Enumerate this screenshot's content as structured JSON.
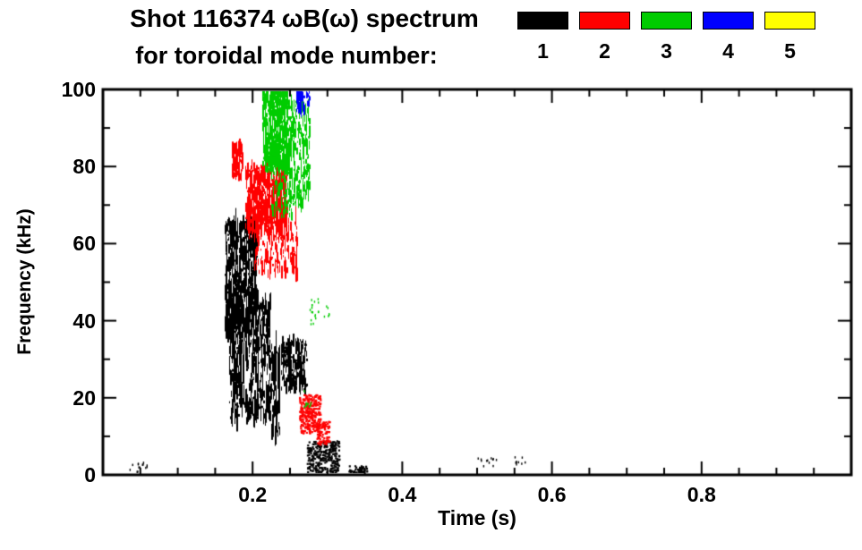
{
  "header": {
    "title_line1": "Shot 116374 ωB(ω) spectrum",
    "title_line2": "for toroidal mode number:"
  },
  "chart_data": {
    "type": "scatter",
    "title": "Shot 116374 ωB(ω) spectrum for toroidal mode number: 1,2,3,4,5",
    "xlabel": "Time (s)",
    "ylabel": "Frequency (kHz)",
    "xlim": [
      0,
      1.0
    ],
    "ylim": [
      0,
      100
    ],
    "xticks": [
      0.2,
      0.4,
      0.6,
      0.8
    ],
    "xtick_labels": [
      "0.2",
      "0.4",
      "0.6",
      "0.8"
    ],
    "x_minor_step": 0.05,
    "yticks": [
      0,
      20,
      40,
      60,
      80,
      100
    ],
    "ytick_labels": [
      "0",
      "20",
      "40",
      "60",
      "80",
      "100"
    ],
    "y_minor_step": 10,
    "grid": false,
    "legend_position": "top",
    "series": [
      {
        "name": "toroidal mode n=1",
        "label": "1",
        "color": "#000000",
        "clusters": [
          {
            "t": [
              0.163,
              0.205
            ],
            "f": [
              36,
              66
            ],
            "n": 650,
            "style": "vstreaks",
            "max_len": 7
          },
          {
            "t": [
              0.168,
              0.225
            ],
            "f": [
              14,
              46
            ],
            "n": 450,
            "style": "vstreaks",
            "max_len": 9
          },
          {
            "t": [
              0.224,
              0.236
            ],
            "f": [
              10,
              34
            ],
            "n": 60,
            "style": "vstreaks",
            "max_len": 12
          },
          {
            "t": [
              0.238,
              0.272
            ],
            "f": [
              22,
              35
            ],
            "n": 260,
            "style": "vstreaks",
            "max_len": 5
          },
          {
            "t": [
              0.272,
              0.315
            ],
            "f": [
              0,
              9
            ],
            "n": 320,
            "style": "blob"
          },
          {
            "t": [
              0.328,
              0.352
            ],
            "f": [
              0,
              2.5
            ],
            "n": 70,
            "style": "blob"
          },
          {
            "t": [
              0.035,
              0.06
            ],
            "f": [
              1,
              3.5
            ],
            "n": 14,
            "style": "sparse"
          },
          {
            "t": [
              0.5,
              0.53
            ],
            "f": [
              2.5,
              5
            ],
            "n": 12,
            "style": "sparse"
          },
          {
            "t": [
              0.545,
              0.565
            ],
            "f": [
              3,
              5
            ],
            "n": 9,
            "style": "sparse"
          }
        ]
      },
      {
        "name": "toroidal mode n=2",
        "label": "2",
        "color": "#ff0000",
        "clusters": [
          {
            "t": [
              0.172,
              0.186
            ],
            "f": [
              77,
              86
            ],
            "n": 80,
            "style": "vstreaks",
            "max_len": 5
          },
          {
            "t": [
              0.19,
              0.245
            ],
            "f": [
              63,
              80
            ],
            "n": 600,
            "style": "vstreaks",
            "max_len": 6
          },
          {
            "t": [
              0.2,
              0.26
            ],
            "f": [
              52,
              68
            ],
            "n": 200,
            "style": "vstreaks",
            "max_len": 6
          },
          {
            "t": [
              0.262,
              0.29
            ],
            "f": [
              11,
              21
            ],
            "n": 300,
            "style": "blob"
          },
          {
            "t": [
              0.285,
              0.302
            ],
            "f": [
              8,
              14
            ],
            "n": 90,
            "style": "blob"
          }
        ]
      },
      {
        "name": "toroidal mode n=3",
        "label": "3",
        "color": "#00cc00",
        "clusters": [
          {
            "t": [
              0.213,
              0.247
            ],
            "f": [
              79,
              100
            ],
            "n": 550,
            "style": "vstreaks",
            "max_len": 6
          },
          {
            "t": [
              0.247,
              0.275
            ],
            "f": [
              70,
              97
            ],
            "n": 220,
            "style": "vstreaks",
            "max_len": 5
          },
          {
            "t": [
              0.225,
              0.252
            ],
            "f": [
              67,
              79
            ],
            "n": 90,
            "style": "vstreaks",
            "max_len": 4
          },
          {
            "t": [
              0.276,
              0.288
            ],
            "f": [
              39,
              46
            ],
            "n": 18,
            "style": "sparse"
          },
          {
            "t": [
              0.295,
              0.302
            ],
            "f": [
              41,
              44
            ],
            "n": 6,
            "style": "sparse"
          },
          {
            "t": [
              0.268,
              0.278
            ],
            "f": [
              17,
              22
            ],
            "n": 10,
            "style": "sparse"
          }
        ]
      },
      {
        "name": "toroidal mode n=4",
        "label": "4",
        "color": "#0000ff",
        "clusters": [
          {
            "t": [
              0.258,
              0.268
            ],
            "f": [
              94,
              100
            ],
            "n": 45,
            "style": "vstreaks",
            "max_len": 4
          },
          {
            "t": [
              0.272,
              0.276
            ],
            "f": [
              96,
              100
            ],
            "n": 12,
            "style": "vstreaks",
            "max_len": 3
          }
        ]
      },
      {
        "name": "toroidal mode n=5",
        "label": "5",
        "color": "#ffff00",
        "clusters": []
      }
    ]
  }
}
